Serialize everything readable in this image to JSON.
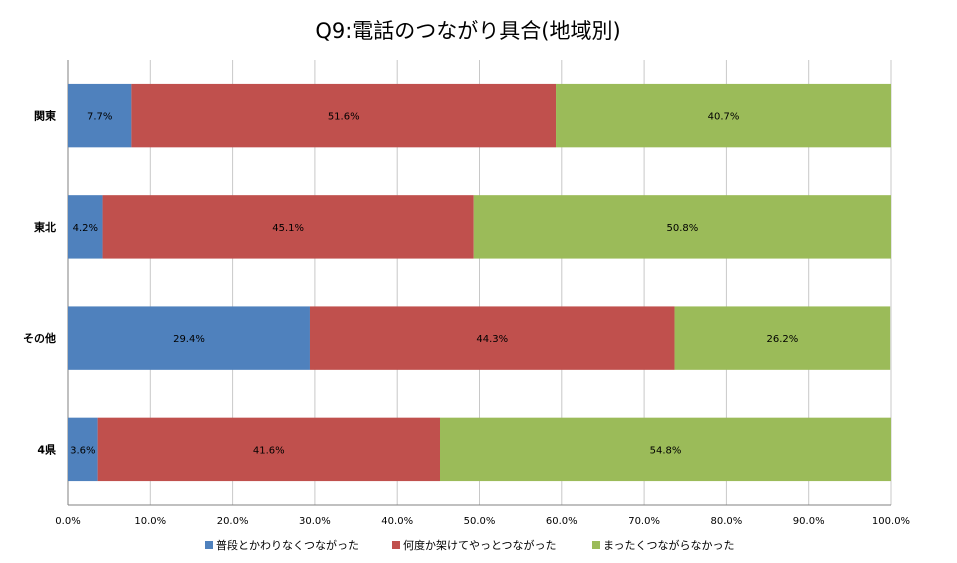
{
  "chart_data": {
    "type": "bar",
    "orientation": "horizontal",
    "stacked": true,
    "title": "Q9:電話のつながり具合(地域別)",
    "categories": [
      "関東",
      "東北",
      "その他",
      "4県"
    ],
    "series": [
      {
        "name": "普段とかわりなくつながった",
        "color": "#4F81BD",
        "values": [
          7.7,
          4.2,
          29.4,
          3.6
        ],
        "labels": [
          "7.7%",
          "4.2%",
          "29.4%",
          "3.6%"
        ]
      },
      {
        "name": "何度か架けてやっとつながった",
        "color": "#C0504D",
        "values": [
          51.6,
          45.1,
          44.3,
          41.6
        ],
        "labels": [
          "51.6%",
          "45.1%",
          "44.3%",
          "41.6%"
        ]
      },
      {
        "name": "まったくつながらなかった",
        "color": "#9BBB59",
        "values": [
          40.7,
          50.8,
          26.2,
          54.8
        ],
        "labels": [
          "40.7%",
          "50.8%",
          "26.2%",
          "54.8%"
        ]
      }
    ],
    "xlim": [
      0,
      100
    ],
    "xticks": [
      "0.0%",
      "10.0%",
      "20.0%",
      "30.0%",
      "40.0%",
      "50.0%",
      "60.0%",
      "70.0%",
      "80.0%",
      "90.0%",
      "100.0%"
    ],
    "grid": true,
    "legend": "bottom"
  }
}
